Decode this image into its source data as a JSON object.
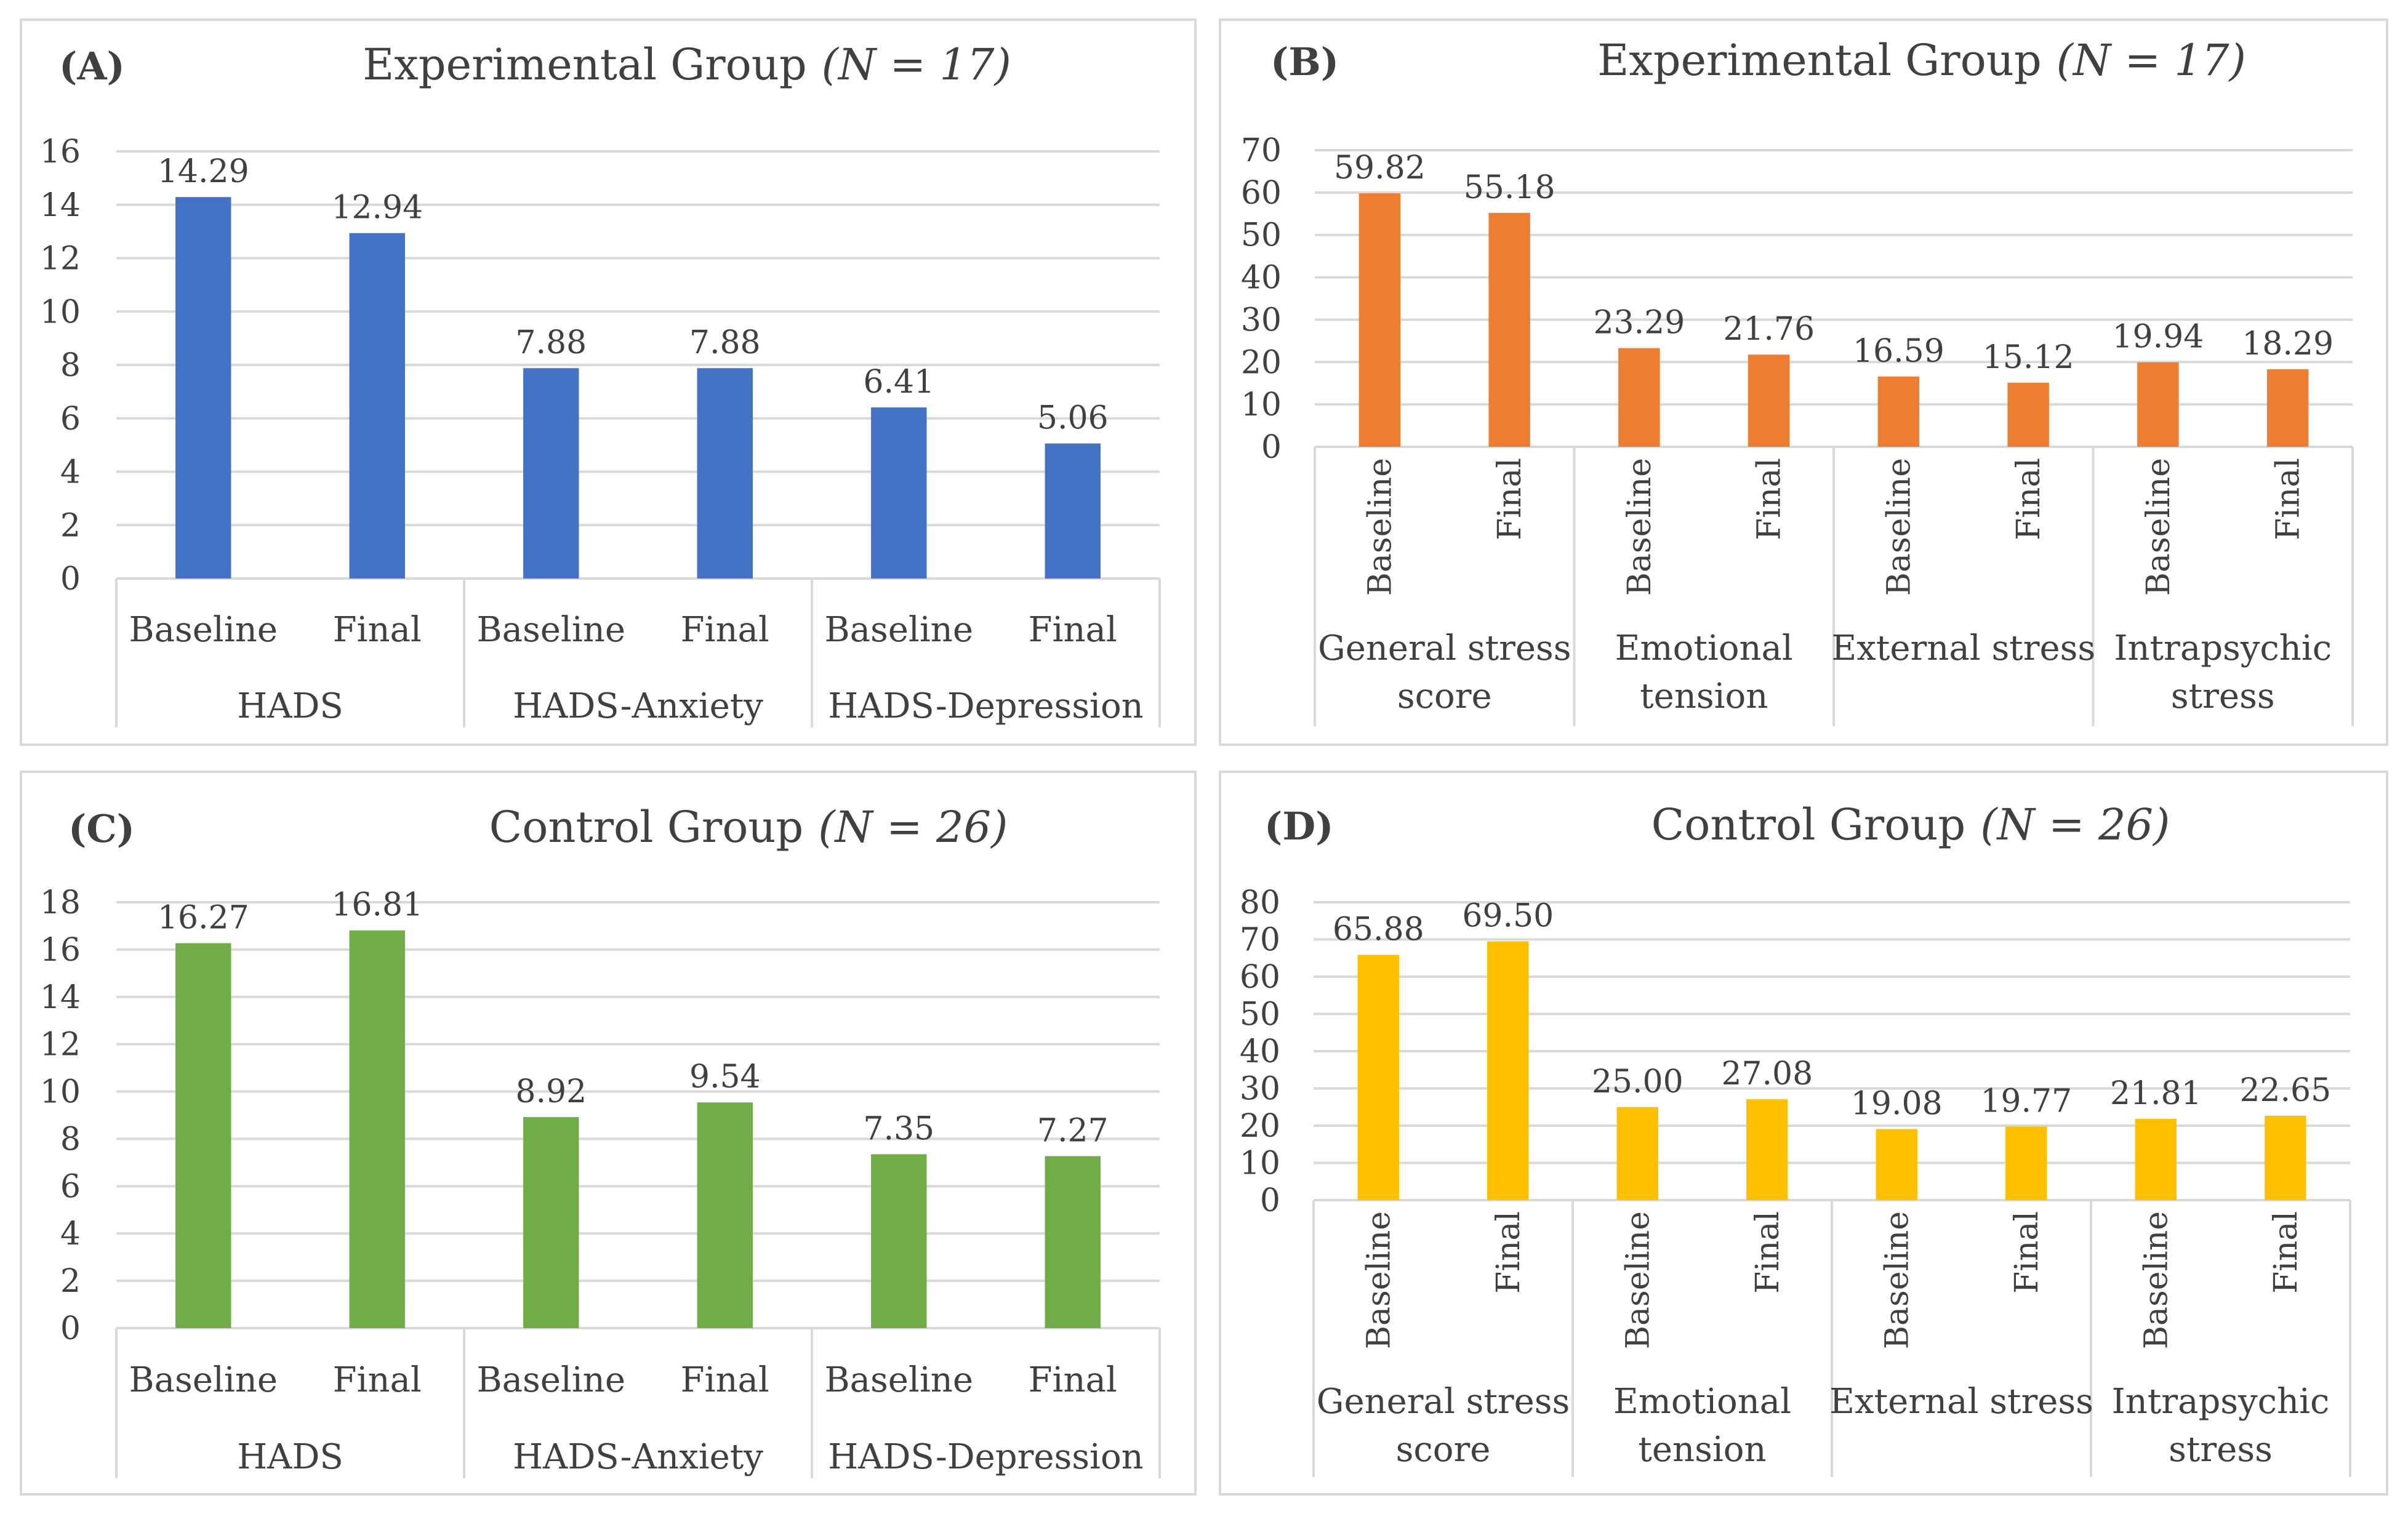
{
  "chart_data": [
    {
      "type": "bar",
      "panel_label": "(A)",
      "title": "Experimental Group",
      "title_n": "(N = 17)",
      "color": "#4472C4",
      "ylim": [
        0,
        16
      ],
      "yticks": [
        "0",
        "2",
        "4",
        "6",
        "8",
        "10",
        "12",
        "14",
        "16"
      ],
      "categories": [
        "Baseline",
        "Final",
        "Baseline",
        "Final",
        "Baseline",
        "Final"
      ],
      "groups": [
        {
          "label": [
            "HADS"
          ]
        },
        {
          "label": [
            "HADS-Anxiety"
          ]
        },
        {
          "label": [
            "HADS-Depression"
          ]
        }
      ],
      "values": [
        14.29,
        12.94,
        7.88,
        7.88,
        6.41,
        5.06
      ],
      "value_labels": [
        "14.29",
        "12.94",
        "7.88",
        "7.88",
        "6.41",
        "5.06"
      ]
    },
    {
      "type": "bar",
      "panel_label": "(B)",
      "title": "Experimental Group",
      "title_n": "(N = 17)",
      "color": "#ED7D31",
      "ylim": [
        0,
        70
      ],
      "yticks": [
        "0",
        "10",
        "20",
        "30",
        "40",
        "50",
        "60",
        "70"
      ],
      "categories": [
        "Baseline",
        "Final",
        "Baseline",
        "Final",
        "Baseline",
        "Final",
        "Baseline",
        "Final"
      ],
      "groups": [
        {
          "label": [
            "General stress",
            "score"
          ]
        },
        {
          "label": [
            "Emotional",
            "tension"
          ]
        },
        {
          "label": [
            "External stress"
          ]
        },
        {
          "label": [
            "Intrapsychic",
            "stress"
          ]
        }
      ],
      "values": [
        59.82,
        55.18,
        23.29,
        21.76,
        16.59,
        15.12,
        19.94,
        18.29
      ],
      "value_labels": [
        "59.82",
        "55.18",
        "23.29",
        "21.76",
        "16.59",
        "15.12",
        "19.94",
        "18.29"
      ]
    },
    {
      "type": "bar",
      "panel_label": "(C)",
      "title": "Control Group",
      "title_n": "(N = 26)",
      "color": "#70AD47",
      "ylim": [
        0,
        18
      ],
      "yticks": [
        "0",
        "2",
        "4",
        "6",
        "8",
        "10",
        "12",
        "14",
        "16",
        "18"
      ],
      "categories": [
        "Baseline",
        "Final",
        "Baseline",
        "Final",
        "Baseline",
        "Final"
      ],
      "groups": [
        {
          "label": [
            "HADS"
          ]
        },
        {
          "label": [
            "HADS-Anxiety"
          ]
        },
        {
          "label": [
            "HADS-Depression"
          ]
        }
      ],
      "values": [
        16.27,
        16.81,
        8.92,
        9.54,
        7.35,
        7.27
      ],
      "value_labels": [
        "16.27",
        "16.81",
        "8.92",
        "9.54",
        "7.35",
        "7.27"
      ]
    },
    {
      "type": "bar",
      "panel_label": "(D)",
      "title": "Control Group",
      "title_n": "(N = 26)",
      "color": "#FFC000",
      "ylim": [
        0,
        80
      ],
      "yticks": [
        "0",
        "10",
        "20",
        "30",
        "40",
        "50",
        "60",
        "70",
        "80"
      ],
      "categories": [
        "Baseline",
        "Final",
        "Baseline",
        "Final",
        "Baseline",
        "Final",
        "Baseline",
        "Final"
      ],
      "groups": [
        {
          "label": [
            "General stress",
            "score"
          ]
        },
        {
          "label": [
            "Emotional",
            "tension"
          ]
        },
        {
          "label": [
            "External stress"
          ]
        },
        {
          "label": [
            "Intrapsychic",
            "stress"
          ]
        }
      ],
      "values": [
        65.88,
        69.5,
        25.0,
        27.08,
        19.08,
        19.77,
        21.81,
        22.65
      ],
      "value_labels": [
        "65.88",
        "69.50",
        "25.00",
        "27.08",
        "19.08",
        "19.77",
        "21.81",
        "22.65"
      ]
    }
  ]
}
